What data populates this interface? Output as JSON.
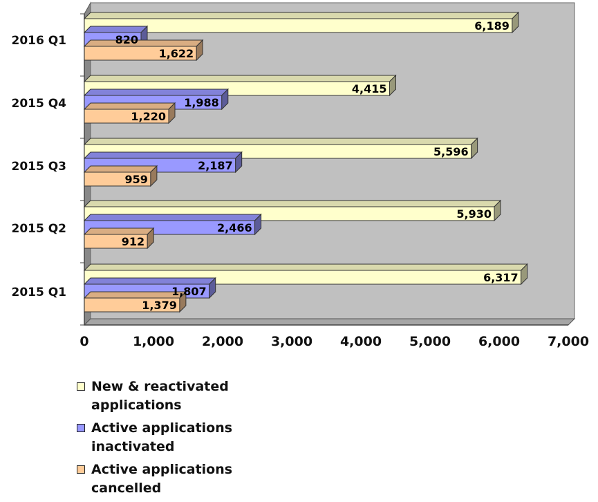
{
  "chart_data": {
    "type": "bar",
    "orientation": "horizontal",
    "style": "3d",
    "categories": [
      "2016 Q1",
      "2015 Q4",
      "2015 Q3",
      "2015 Q2",
      "2015 Q1"
    ],
    "series": [
      {
        "name": "New & reactivated applications",
        "color": "#ffffcc",
        "values": [
          6189,
          4415,
          5596,
          5930,
          6317
        ],
        "labels": [
          "6,189",
          "4,415",
          "5,596",
          "5,930",
          "6,317"
        ]
      },
      {
        "name": "Active applications inactivated",
        "color": "#9999ff",
        "values": [
          820,
          1988,
          2187,
          2466,
          1807
        ],
        "labels": [
          "820",
          "1,988",
          "2,187",
          "2,466",
          "1,807"
        ]
      },
      {
        "name": "Active applications cancelled",
        "color": "#ffcc99",
        "values": [
          1622,
          1220,
          959,
          912,
          1379
        ],
        "labels": [
          "1,622",
          "1,220",
          "959",
          "912",
          "1,379"
        ]
      }
    ],
    "xlim": [
      0,
      7000
    ],
    "x_ticks": [
      0,
      1000,
      2000,
      3000,
      4000,
      5000,
      6000,
      7000
    ],
    "x_tick_labels": [
      "0",
      "1,000",
      "2,000",
      "3,000",
      "4,000",
      "5,000",
      "6,000",
      "7,000"
    ],
    "legend_position": "bottom-left",
    "wall_color": "#c0c0c0",
    "title": "",
    "xlabel": "",
    "ylabel": ""
  }
}
